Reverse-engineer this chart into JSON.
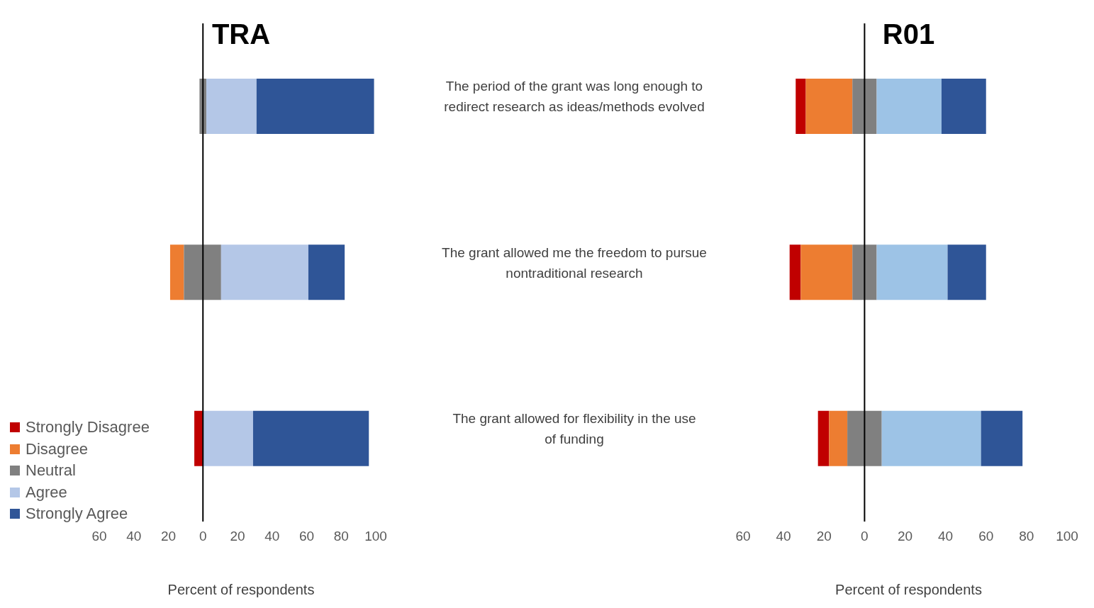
{
  "chart_data": [
    {
      "type": "bar",
      "title": "TRA",
      "orientation": "horizontal",
      "xlabel": "Percent of respondents",
      "categories": [
        null,
        null,
        null
      ],
      "series": [
        {
          "name": "Strongly Disagree",
          "color": "#c00000",
          "base": [
            null,
            null,
            -5
          ],
          "values": [
            null,
            null,
            5
          ]
        },
        {
          "name": "Disagree",
          "color": "#ed7d31",
          "base": [
            null,
            -19,
            null
          ],
          "values": [
            null,
            8,
            null
          ]
        },
        {
          "name": "Neutral",
          "color": "#808080",
          "base": [
            -2,
            -11,
            null
          ],
          "values": [
            4,
            21.5,
            null
          ]
        },
        {
          "name": "Agree",
          "color": "#b4c7e7",
          "base": [
            2,
            10.5,
            0
          ],
          "values": [
            29,
            50.5,
            29
          ]
        },
        {
          "name": "Strongly Agree",
          "color": "#2f5597",
          "base": [
            31,
            61,
            29
          ],
          "values": [
            68,
            21,
            67
          ]
        }
      ],
      "xlim": [
        -60,
        100
      ],
      "xticks": [
        {
          "value": -60,
          "label": "60"
        },
        {
          "value": -40,
          "label": "40"
        },
        {
          "value": -20,
          "label": "20"
        },
        0,
        20,
        40,
        60,
        80,
        100
      ],
      "ref_lines": [
        {
          "axis": "x",
          "value": 0,
          "color": "#000000"
        }
      ],
      "legend": "bottom left",
      "grid": false
    },
    {
      "type": "bar",
      "title": "R01",
      "orientation": "horizontal",
      "xlabel": "Percent of respondents",
      "categories": [
        "The period of the grant was long enough to redirect research as ideas/methods evolved",
        "The grant allowed me the freedom to pursue nontraditional research",
        "The grant allowed for flexibility in the use of funding"
      ],
      "series": [
        {
          "color": "#c00000",
          "base": [
            -34,
            -37,
            -23
          ],
          "values": [
            5,
            5.5,
            5.5
          ]
        },
        {
          "color": "#ed7d31",
          "base": [
            -29,
            -31.5,
            -17.5
          ],
          "values": [
            23,
            25.5,
            9
          ]
        },
        {
          "color": "#808080",
          "base": [
            -6,
            -6,
            -8.5
          ],
          "values": [
            12,
            12,
            17
          ]
        },
        {
          "color": "#9dc3e6",
          "base": [
            6,
            6,
            8.5
          ],
          "values": [
            32,
            35,
            49
          ]
        },
        {
          "color": "#2f5597",
          "base": [
            38,
            41,
            57.5
          ],
          "values": [
            22,
            19,
            20.5
          ]
        }
      ],
      "xlim": [
        -60,
        100
      ],
      "xticks": [
        {
          "value": -60,
          "label": "60"
        },
        {
          "value": -40,
          "label": "40"
        },
        {
          "value": -20,
          "label": "20"
        },
        0,
        20,
        40,
        60,
        80,
        100
      ],
      "ref_lines": [
        {
          "axis": "x",
          "value": 0,
          "color": "#000000"
        }
      ],
      "grid": false
    }
  ]
}
